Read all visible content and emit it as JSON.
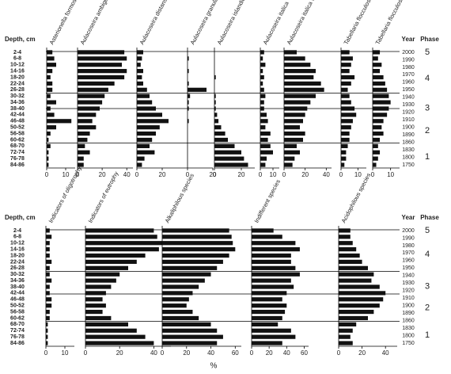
{
  "chart_data": [
    {
      "type": "bar",
      "orientation": "horizontal",
      "depth_label": "Depth, cm",
      "year_label": "Year",
      "phase_label": "Phase",
      "color": "#111111",
      "categories": [
        "2-4",
        "6-8",
        "10-12",
        "14-16",
        "18-20",
        "22-24",
        "26-28",
        "30-32",
        "34-36",
        "38-40",
        "42-44",
        "46-48",
        "50-52",
        "56-58",
        "60-62",
        "68-70",
        "72-74",
        "76-78",
        "84-86"
      ],
      "years": [
        2000,
        1990,
        1980,
        1970,
        1960,
        1950,
        1940,
        1930,
        1920,
        1910,
        1900,
        1890,
        1860,
        1830,
        1800,
        1750
      ],
      "phases": [
        5,
        4,
        3,
        2,
        1
      ],
      "series": [
        {
          "name": "Asterionella formosa",
          "xlim": [
            0,
            15
          ],
          "xticks": [
            0,
            10
          ],
          "values": [
            3,
            4,
            5,
            3,
            2,
            3,
            3,
            2,
            5,
            2,
            4,
            13,
            5,
            2,
            1,
            2,
            1,
            1,
            1
          ]
        },
        {
          "name": "Aulacoseira ambigua",
          "xlim": [
            0,
            45
          ],
          "xticks": [
            0,
            20,
            40
          ],
          "values": [
            38,
            40,
            36,
            40,
            38,
            30,
            25,
            22,
            20,
            18,
            15,
            12,
            15,
            10,
            8,
            6,
            10,
            5,
            5
          ]
        },
        {
          "name": "Aulacoseira distans group",
          "xlim": [
            0,
            40
          ],
          "xticks": [
            0,
            20
          ],
          "values": [
            5,
            4,
            3,
            5,
            4,
            5,
            8,
            10,
            12,
            15,
            20,
            25,
            18,
            15,
            12,
            10,
            14,
            6,
            4
          ]
        },
        {
          "name": "Aulacoseira granulata",
          "xlim": [
            0,
            20
          ],
          "xticks": [
            0,
            20
          ],
          "values": [
            0,
            1,
            0,
            1,
            0,
            1,
            15,
            2,
            1,
            1,
            0,
            1,
            0,
            0,
            0,
            0,
            0,
            0,
            0
          ]
        },
        {
          "name": "Aulacoseira islandica",
          "xlim": [
            0,
            30
          ],
          "xticks": [
            0,
            20
          ],
          "values": [
            0,
            0,
            0,
            0,
            1,
            0,
            0,
            1,
            1,
            1,
            2,
            3,
            5,
            8,
            10,
            15,
            20,
            22,
            25
          ]
        },
        {
          "name": "Aulacoseira italica",
          "xlim": [
            0,
            15
          ],
          "xticks": [
            0,
            10
          ],
          "values": [
            3,
            2,
            4,
            2,
            3,
            2,
            3,
            4,
            3,
            3,
            5,
            6,
            4,
            8,
            6,
            8,
            10,
            5,
            4
          ]
        },
        {
          "name": "Aulacoseira italica v. tenuissima",
          "xlim": [
            0,
            45
          ],
          "xticks": [
            0,
            20,
            40
          ],
          "values": [
            12,
            20,
            25,
            30,
            28,
            35,
            38,
            30,
            25,
            22,
            20,
            18,
            15,
            20,
            18,
            12,
            15,
            10,
            8
          ]
        },
        {
          "name": "Tabellaria flocculosa v. asterionelloides",
          "xlim": [
            0,
            15
          ],
          "xticks": [
            0,
            10
          ],
          "values": [
            5,
            7,
            6,
            5,
            8,
            6,
            4,
            5,
            6,
            8,
            9,
            7,
            6,
            5,
            5,
            4,
            3,
            3,
            2
          ]
        },
        {
          "name": "Tabellaria flocculosa",
          "xlim": [
            0,
            15
          ],
          "xticks": [
            0,
            10
          ],
          "values": [
            4,
            3,
            5,
            4,
            6,
            7,
            8,
            9,
            10,
            9,
            8,
            6,
            5,
            6,
            4,
            3,
            4,
            3,
            2
          ]
        }
      ]
    },
    {
      "type": "bar",
      "orientation": "horizontal",
      "depth_label": "Depth, cm",
      "year_label": "Year",
      "phase_label": "Phase",
      "xlabel": "%",
      "color": "#111111",
      "categories": [
        "2-4",
        "6-8",
        "10-12",
        "14-16",
        "18-20",
        "22-24",
        "26-28",
        "30-32",
        "34-36",
        "38-40",
        "42-44",
        "46-48",
        "50-52",
        "56-58",
        "60-62",
        "68-70",
        "72-74",
        "76-78",
        "84-86"
      ],
      "years": [
        2000,
        1990,
        1980,
        1970,
        1960,
        1950,
        1940,
        1930,
        1920,
        1910,
        1900,
        1890,
        1860,
        1830,
        1800,
        1750
      ],
      "phases": [
        5,
        4,
        3,
        2,
        1
      ],
      "series": [
        {
          "name": "Indicators of oligotrophy",
          "xlim": [
            0,
            15
          ],
          "xticks": [
            0,
            10
          ],
          "values": [
            2,
            3,
            2,
            2,
            2,
            3,
            2,
            2,
            3,
            2,
            2,
            3,
            3,
            2,
            2,
            1,
            1,
            1,
            1
          ]
        },
        {
          "name": "Indicators of eutrophy",
          "xlim": [
            0,
            50
          ],
          "xticks": [
            0,
            20,
            40
          ],
          "values": [
            40,
            42,
            45,
            43,
            35,
            30,
            25,
            20,
            18,
            15,
            12,
            10,
            12,
            10,
            15,
            25,
            30,
            35,
            40
          ]
        },
        {
          "name": "Alkaliphilous species",
          "xlim": [
            0,
            65
          ],
          "xticks": [
            0,
            20,
            40,
            60
          ],
          "values": [
            55,
            57,
            58,
            60,
            55,
            50,
            45,
            40,
            35,
            30,
            25,
            22,
            20,
            25,
            30,
            40,
            45,
            50,
            45
          ]
        },
        {
          "name": "Indifferent species",
          "xlim": [
            0,
            65
          ],
          "xticks": [
            0,
            20,
            40,
            60
          ],
          "values": [
            25,
            35,
            50,
            55,
            45,
            45,
            50,
            55,
            45,
            48,
            40,
            35,
            40,
            38,
            35,
            30,
            45,
            50,
            35
          ]
        },
        {
          "name": "Acidophilous species",
          "xlim": [
            0,
            50
          ],
          "xticks": [
            0,
            20,
            40
          ],
          "values": [
            10,
            10,
            12,
            15,
            18,
            20,
            25,
            30,
            28,
            35,
            40,
            38,
            35,
            30,
            25,
            15,
            12,
            10,
            12
          ]
        }
      ]
    }
  ]
}
